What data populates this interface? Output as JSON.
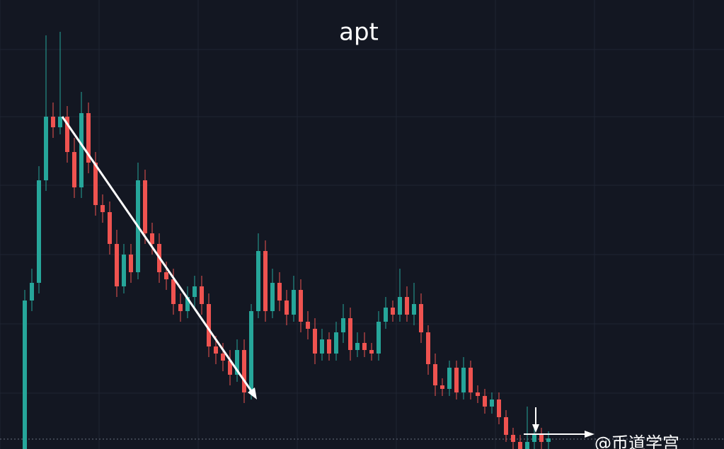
{
  "chart_data": {
    "type": "candlestick",
    "title": "apt",
    "watermark": "@币道学宫",
    "ylim": [
      0,
      635
    ],
    "up_color": "#26a69a",
    "down_color": "#ef5350",
    "open": [
      0,
      210,
      235,
      380,
      470,
      455,
      470,
      420,
      370,
      475,
      405,
      345,
      335,
      290,
      230,
      275,
      250,
      380,
      305,
      290,
      250,
      240,
      205,
      195,
      215,
      230,
      205,
      145,
      135,
      125,
      105,
      140,
      80,
      195,
      280,
      195,
      235,
      210,
      190,
      225,
      180,
      170,
      135,
      155,
      135,
      165,
      185,
      140,
      150,
      140,
      135,
      180,
      200,
      190,
      215,
      190,
      205,
      165,
      120,
      90,
      85,
      115,
      80,
      115,
      80,
      75,
      60,
      70,
      45,
      20,
      10,
      0,
      10,
      20,
      10
    ],
    "high": [
      225,
      255,
      400,
      585,
      490,
      590,
      485,
      440,
      505,
      490,
      420,
      360,
      350,
      310,
      290,
      290,
      405,
      395,
      320,
      305,
      265,
      255,
      220,
      230,
      245,
      245,
      220,
      160,
      150,
      140,
      155,
      155,
      205,
      305,
      295,
      255,
      250,
      225,
      245,
      240,
      195,
      185,
      170,
      165,
      180,
      205,
      200,
      165,
      165,
      150,
      195,
      215,
      210,
      255,
      230,
      235,
      220,
      175,
      135,
      100,
      125,
      125,
      130,
      125,
      90,
      85,
      80,
      80,
      55,
      30,
      20,
      60,
      30,
      30,
      25
    ],
    "low": [
      0,
      195,
      220,
      365,
      440,
      445,
      405,
      355,
      355,
      390,
      330,
      320,
      275,
      215,
      220,
      235,
      240,
      290,
      275,
      235,
      225,
      190,
      180,
      185,
      200,
      190,
      130,
      120,
      110,
      90,
      95,
      65,
      70,
      185,
      180,
      185,
      195,
      175,
      180,
      165,
      155,
      120,
      125,
      125,
      125,
      150,
      125,
      130,
      130,
      125,
      125,
      170,
      180,
      180,
      180,
      175,
      150,
      105,
      75,
      75,
      75,
      70,
      70,
      70,
      65,
      50,
      50,
      35,
      10,
      0,
      0,
      0,
      0,
      0,
      0
    ],
    "close": [
      210,
      235,
      380,
      470,
      455,
      470,
      420,
      370,
      475,
      405,
      345,
      335,
      290,
      230,
      275,
      250,
      380,
      305,
      290,
      250,
      240,
      205,
      195,
      215,
      230,
      205,
      145,
      135,
      125,
      105,
      140,
      80,
      195,
      280,
      195,
      235,
      210,
      190,
      225,
      180,
      170,
      135,
      155,
      135,
      165,
      185,
      140,
      150,
      140,
      135,
      180,
      200,
      190,
      215,
      190,
      205,
      165,
      120,
      90,
      85,
      115,
      80,
      115,
      80,
      75,
      60,
      70,
      45,
      20,
      10,
      0,
      10,
      20,
      10,
      15
    ]
  }
}
